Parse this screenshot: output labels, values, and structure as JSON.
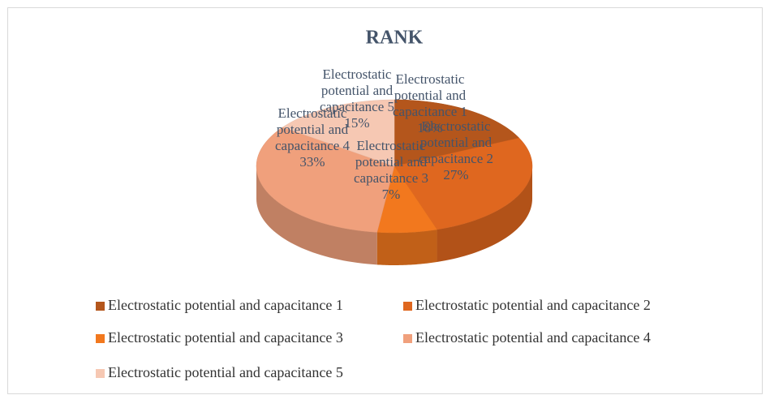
{
  "chart_data": {
    "type": "pie3d",
    "title": "RANK",
    "categories": [
      "Electrostatic potential and capacitance 1",
      "Electrostatic potential and capacitance 2",
      "Electrostatic potential and capacitance 3",
      "Electrostatic potential and capacitance 4",
      "Electrostatic potential and capacitance 5"
    ],
    "values": [
      18,
      27,
      7,
      33,
      15
    ],
    "value_labels": [
      "18%",
      "27%",
      "7%",
      "33%",
      "15%"
    ],
    "colors": [
      "#b4561c",
      "#df671f",
      "#f2781e",
      "#f0a07c",
      "#f6c8b3"
    ],
    "legend": "bottom"
  }
}
